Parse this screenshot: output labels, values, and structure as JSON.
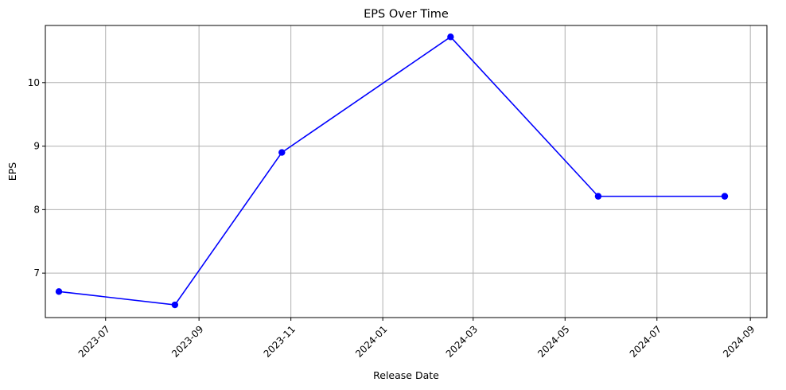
{
  "chart_data": {
    "type": "line",
    "title": "EPS Over Time",
    "xlabel": "Release Date",
    "ylabel": "EPS",
    "x_scale": "date",
    "xlim": [
      "2023-05-22",
      "2024-09-12"
    ],
    "ylim": [
      6.3,
      10.9
    ],
    "x_ticks": [
      "2023-07",
      "2023-09",
      "2023-11",
      "2024-01",
      "2024-03",
      "2024-05",
      "2024-07",
      "2024-09"
    ],
    "y_ticks": [
      "7",
      "8",
      "9",
      "10"
    ],
    "grid": true,
    "series": [
      {
        "color": "#0000ff",
        "marker": "circle",
        "points": [
          {
            "x": "2023-05-31",
            "y": 6.71
          },
          {
            "x": "2023-08-16",
            "y": 6.5
          },
          {
            "x": "2023-10-26",
            "y": 8.9
          },
          {
            "x": "2024-02-15",
            "y": 10.72
          },
          {
            "x": "2024-05-23",
            "y": 8.21
          },
          {
            "x": "2024-08-15",
            "y": 8.21
          }
        ]
      }
    ]
  }
}
